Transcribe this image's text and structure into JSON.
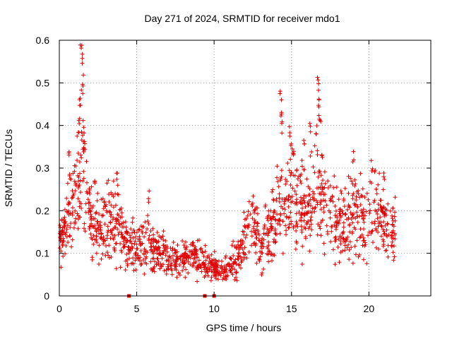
{
  "chart_data": {
    "type": "scatter",
    "title": "Day 271 of 2024, SRMTID for receiver mdo1",
    "xlabel": "GPS time / hours",
    "ylabel": "SRMTID / TECUs",
    "xlim": [
      0,
      24
    ],
    "ylim": [
      0,
      0.6
    ],
    "xticks": [
      0,
      5,
      10,
      15,
      20
    ],
    "yticks": [
      0,
      0.1,
      0.2,
      0.3,
      0.4,
      0.5,
      0.6
    ],
    "ytick_labels": [
      "0",
      "0.1",
      "0.2",
      "0.3",
      "0.4",
      "0.5",
      "0.6"
    ],
    "grid": true,
    "marker": "+",
    "color": "#e00000",
    "data_end_hour": 21.7,
    "zero_markers_x": [
      4.5,
      9.4,
      10.0
    ],
    "trend": [
      {
        "x": 0.0,
        "y": 0.12
      },
      {
        "x": 0.5,
        "y": 0.17
      },
      {
        "x": 1.0,
        "y": 0.21
      },
      {
        "x": 1.3,
        "y": 0.3
      },
      {
        "x": 1.5,
        "y": 0.32
      },
      {
        "x": 1.8,
        "y": 0.22
      },
      {
        "x": 2.2,
        "y": 0.15
      },
      {
        "x": 3.0,
        "y": 0.17
      },
      {
        "x": 3.5,
        "y": 0.18
      },
      {
        "x": 3.9,
        "y": 0.16
      },
      {
        "x": 4.3,
        "y": 0.12
      },
      {
        "x": 5.0,
        "y": 0.11
      },
      {
        "x": 5.6,
        "y": 0.12
      },
      {
        "x": 6.0,
        "y": 0.11
      },
      {
        "x": 6.7,
        "y": 0.1
      },
      {
        "x": 7.3,
        "y": 0.08
      },
      {
        "x": 8.0,
        "y": 0.09
      },
      {
        "x": 8.8,
        "y": 0.09
      },
      {
        "x": 9.4,
        "y": 0.08
      },
      {
        "x": 10.0,
        "y": 0.065
      },
      {
        "x": 10.6,
        "y": 0.06
      },
      {
        "x": 11.3,
        "y": 0.08
      },
      {
        "x": 11.8,
        "y": 0.11
      },
      {
        "x": 12.3,
        "y": 0.17
      },
      {
        "x": 12.6,
        "y": 0.19
      },
      {
        "x": 13.0,
        "y": 0.11
      },
      {
        "x": 13.5,
        "y": 0.15
      },
      {
        "x": 14.0,
        "y": 0.17
      },
      {
        "x": 14.5,
        "y": 0.21
      },
      {
        "x": 15.0,
        "y": 0.23
      },
      {
        "x": 15.5,
        "y": 0.2
      },
      {
        "x": 16.0,
        "y": 0.22
      },
      {
        "x": 16.5,
        "y": 0.23
      },
      {
        "x": 17.0,
        "y": 0.22
      },
      {
        "x": 17.5,
        "y": 0.19
      },
      {
        "x": 18.0,
        "y": 0.17
      },
      {
        "x": 18.5,
        "y": 0.17
      },
      {
        "x": 19.0,
        "y": 0.2
      },
      {
        "x": 19.5,
        "y": 0.18
      },
      {
        "x": 20.0,
        "y": 0.2
      },
      {
        "x": 20.5,
        "y": 0.21
      },
      {
        "x": 21.0,
        "y": 0.17
      },
      {
        "x": 21.3,
        "y": 0.13
      },
      {
        "x": 21.7,
        "y": 0.15
      }
    ],
    "spikes": [
      {
        "x": 1.4,
        "y": 0.6
      },
      {
        "x": 1.45,
        "y": 0.57
      },
      {
        "x": 1.5,
        "y": 0.52
      },
      {
        "x": 1.35,
        "y": 0.47
      },
      {
        "x": 1.3,
        "y": 0.42
      },
      {
        "x": 1.55,
        "y": 0.4
      },
      {
        "x": 1.6,
        "y": 0.37
      },
      {
        "x": 0.6,
        "y": 0.35
      },
      {
        "x": 0.7,
        "y": 0.3
      },
      {
        "x": 3.75,
        "y": 0.29
      },
      {
        "x": 3.8,
        "y": 0.26
      },
      {
        "x": 5.8,
        "y": 0.25
      },
      {
        "x": 2.3,
        "y": 0.28
      },
      {
        "x": 14.3,
        "y": 0.49
      },
      {
        "x": 14.35,
        "y": 0.45
      },
      {
        "x": 14.4,
        "y": 0.41
      },
      {
        "x": 14.9,
        "y": 0.4
      },
      {
        "x": 15.0,
        "y": 0.37
      },
      {
        "x": 15.1,
        "y": 0.34
      },
      {
        "x": 15.8,
        "y": 0.37
      },
      {
        "x": 16.2,
        "y": 0.41
      },
      {
        "x": 16.7,
        "y": 0.52
      },
      {
        "x": 16.75,
        "y": 0.49
      },
      {
        "x": 16.8,
        "y": 0.45
      },
      {
        "x": 16.85,
        "y": 0.42
      },
      {
        "x": 16.6,
        "y": 0.4
      },
      {
        "x": 17.0,
        "y": 0.35
      },
      {
        "x": 19.0,
        "y": 0.34
      },
      {
        "x": 20.2,
        "y": 0.32
      },
      {
        "x": 21.0,
        "y": 0.3
      }
    ]
  }
}
